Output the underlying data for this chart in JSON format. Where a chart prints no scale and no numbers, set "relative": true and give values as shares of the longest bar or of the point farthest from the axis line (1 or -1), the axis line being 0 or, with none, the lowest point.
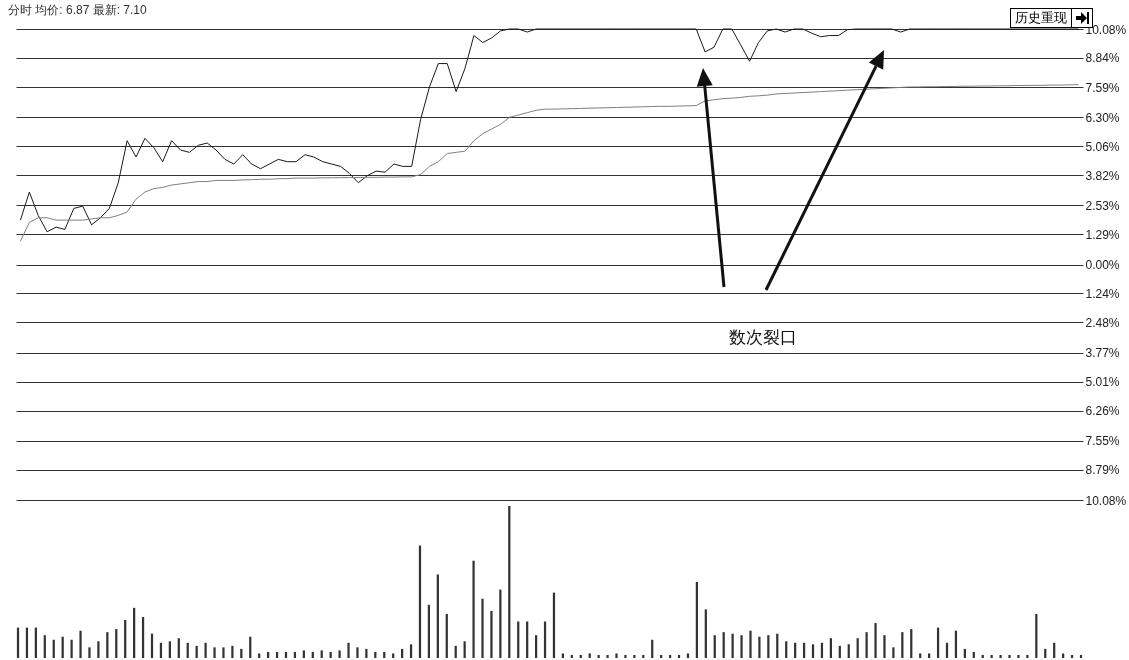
{
  "chart_data": [
    {
      "type": "line",
      "title": "分时 均价: 6.87 最新: 7.10",
      "categories": [
        null,
        null,
        null,
        null,
        null,
        null,
        null,
        null,
        null,
        null,
        null,
        null,
        null,
        null,
        null,
        null,
        null,
        null,
        null,
        null,
        null,
        null,
        null,
        null,
        null,
        null,
        null,
        null,
        null,
        null,
        null,
        null,
        null,
        null,
        null,
        null,
        null,
        null,
        null,
        null,
        null,
        null,
        null,
        null,
        null,
        null,
        null,
        null,
        null,
        null,
        null,
        null,
        null,
        null,
        null,
        null,
        null,
        null,
        null,
        null,
        null,
        null,
        null,
        null,
        null,
        null,
        null,
        null,
        null,
        null,
        null,
        null,
        null,
        null,
        null,
        null,
        null,
        null,
        null,
        null,
        null,
        null,
        null,
        null,
        null,
        null,
        null,
        null,
        null,
        null,
        null,
        null,
        null,
        null,
        null,
        null,
        null,
        null,
        null,
        null,
        null,
        null,
        null,
        null,
        null,
        null,
        null,
        null,
        null,
        null,
        null,
        null,
        null,
        null,
        null,
        null,
        null,
        null,
        null,
        null
      ],
      "series": [
        {
          "color": "#1a1a1a",
          "values": [
            1.9,
            3.1,
            2.1,
            1.4,
            1.6,
            1.5,
            2.4,
            2.5,
            1.7,
            2.0,
            2.4,
            3.5,
            5.3,
            4.6,
            5.4,
            5.0,
            4.4,
            5.3,
            4.9,
            4.8,
            5.1,
            5.2,
            4.9,
            4.5,
            4.3,
            4.7,
            4.3,
            4.1,
            4.3,
            4.5,
            4.4,
            4.4,
            4.7,
            4.6,
            4.4,
            4.3,
            4.2,
            3.9,
            3.5,
            3.8,
            4.0,
            3.95,
            4.3,
            4.2,
            4.2,
            6.2,
            7.6,
            8.6,
            8.6,
            7.4,
            8.4,
            9.8,
            9.5,
            9.7,
            10.0,
            10.08,
            10.08,
            9.95,
            10.08,
            10.08,
            10.08,
            10.08,
            10.08,
            10.08,
            10.08,
            10.08,
            10.08,
            10.08,
            10.08,
            10.08,
            10.08,
            10.08,
            10.08,
            10.08,
            10.08,
            10.08,
            10.08,
            9.1,
            9.3,
            10.08,
            10.08,
            9.4,
            8.7,
            9.5,
            10.0,
            10.08,
            9.95,
            10.08,
            10.08,
            9.9,
            9.75,
            9.8,
            9.8,
            10.05,
            10.08,
            10.08,
            10.08,
            10.08,
            10.08,
            9.95,
            10.08,
            10.08,
            10.08,
            10.08,
            10.08,
            10.08,
            10.08,
            10.08,
            10.08,
            10.08,
            10.08,
            10.08,
            10.08,
            10.08,
            10.08,
            10.08,
            10.08,
            10.08,
            10.08,
            10.08
          ]
        },
        {
          "color": "#7f7f7f",
          "values": [
            1.0,
            1.8,
            2.0,
            2.0,
            1.9,
            1.9,
            1.9,
            1.9,
            1.95,
            2.0,
            2.0,
            2.1,
            2.25,
            2.8,
            3.1,
            3.25,
            3.3,
            3.4,
            3.45,
            3.5,
            3.55,
            3.55,
            3.6,
            3.6,
            3.6,
            3.62,
            3.63,
            3.65,
            3.65,
            3.67,
            3.68,
            3.7,
            3.7,
            3.7,
            3.71,
            3.71,
            3.72,
            3.72,
            3.72,
            3.73,
            3.73,
            3.74,
            3.74,
            3.75,
            3.75,
            3.85,
            4.2,
            4.4,
            4.75,
            4.8,
            4.85,
            5.3,
            5.6,
            5.8,
            6.0,
            6.3,
            6.4,
            6.5,
            6.6,
            6.65,
            6.65,
            6.66,
            6.67,
            6.68,
            6.69,
            6.7,
            6.71,
            6.72,
            6.73,
            6.74,
            6.75,
            6.76,
            6.77,
            6.77,
            6.78,
            6.79,
            6.8,
            7.0,
            7.05,
            7.1,
            7.12,
            7.15,
            7.2,
            7.22,
            7.25,
            7.3,
            7.32,
            7.34,
            7.36,
            7.38,
            7.4,
            7.42,
            7.44,
            7.46,
            7.48,
            7.5,
            7.52,
            7.54,
            7.56,
            7.58,
            7.6,
            7.6,
            7.61,
            7.61,
            7.62,
            7.62,
            7.63,
            7.63,
            7.64,
            7.64,
            7.65,
            7.65,
            7.66,
            7.66,
            7.67,
            7.67,
            7.68,
            7.68,
            7.69,
            7.7
          ]
        }
      ],
      "ylim": [
        -10.08,
        10.08
      ],
      "yticks": [
        {
          "value": 10.08,
          "label": "10.08%"
        },
        {
          "value": 8.84,
          "label": "8.84%"
        },
        {
          "value": 7.59,
          "label": "7.59%"
        },
        {
          "value": 6.3,
          "label": "6.30%"
        },
        {
          "value": 5.06,
          "label": "5.06%"
        },
        {
          "value": 3.82,
          "label": "3.82%"
        },
        {
          "value": 2.53,
          "label": "2.53%"
        },
        {
          "value": 1.29,
          "label": "1.29%"
        },
        {
          "value": 0,
          "label": "0.00%"
        },
        {
          "value": -1.24,
          "label": "1.24%"
        },
        {
          "value": -2.48,
          "label": "2.48%"
        },
        {
          "value": -3.77,
          "label": "3.77%"
        },
        {
          "value": -5.01,
          "label": "5.01%"
        },
        {
          "value": -6.26,
          "label": "6.26%"
        },
        {
          "value": -7.55,
          "label": "7.55%"
        },
        {
          "value": -8.79,
          "label": "8.79%"
        },
        {
          "value": -10.08,
          "label": "10.08%"
        }
      ],
      "grid": "y",
      "tick_labels": "y",
      "annotations": [
        "数次裂口",
        "历史重现"
      ]
    },
    {
      "type": "bar",
      "relative": true,
      "color": "#333333",
      "tick_labels": false,
      "categories": [
        null,
        null,
        null,
        null,
        null,
        null,
        null,
        null,
        null,
        null,
        null,
        null,
        null,
        null,
        null,
        null,
        null,
        null,
        null,
        null,
        null,
        null,
        null,
        null,
        null,
        null,
        null,
        null,
        null,
        null,
        null,
        null,
        null,
        null,
        null,
        null,
        null,
        null,
        null,
        null,
        null,
        null,
        null,
        null,
        null,
        null,
        null,
        null,
        null,
        null,
        null,
        null,
        null,
        null,
        null,
        null,
        null,
        null,
        null,
        null,
        null,
        null,
        null,
        null,
        null,
        null,
        null,
        null,
        null,
        null,
        null,
        null,
        null,
        null,
        null,
        null,
        null,
        null,
        null,
        null,
        null,
        null,
        null,
        null,
        null,
        null,
        null,
        null,
        null,
        null,
        null,
        null,
        null,
        null,
        null,
        null,
        null,
        null,
        null,
        null,
        null,
        null,
        null,
        null,
        null,
        null,
        null,
        null,
        null,
        null,
        null,
        null,
        null,
        null,
        null,
        null,
        null,
        null,
        null,
        null
      ],
      "values": [
        0.2,
        0.2,
        0.2,
        0.15,
        0.12,
        0.14,
        0.12,
        0.18,
        0.07,
        0.11,
        0.17,
        0.19,
        0.25,
        0.33,
        0.27,
        0.16,
        0.1,
        0.11,
        0.13,
        0.1,
        0.08,
        0.1,
        0.07,
        0.07,
        0.08,
        0.06,
        0.14,
        0.03,
        0.04,
        0.04,
        0.04,
        0.04,
        0.05,
        0.04,
        0.05,
        0.04,
        0.05,
        0.1,
        0.07,
        0.06,
        0.04,
        0.04,
        0.03,
        0.06,
        0.09,
        0.74,
        0.35,
        0.55,
        0.29,
        0.08,
        0.11,
        0.64,
        0.39,
        0.31,
        0.45,
        1,
        0.24,
        0.24,
        0.15,
        0.24,
        0.43,
        0.03,
        0.02,
        0.02,
        0.03,
        0.02,
        0.02,
        0.03,
        0.02,
        0.02,
        0.02,
        0.12,
        0.02,
        0.02,
        0.02,
        0.03,
        0.5,
        0.32,
        0.15,
        0.17,
        0.16,
        0.15,
        0.18,
        0.14,
        0.15,
        0.16,
        0.11,
        0.1,
        0.1,
        0.09,
        0.1,
        0.13,
        0.08,
        0.09,
        0.13,
        0.17,
        0.23,
        0.15,
        0.07,
        0.17,
        0.19,
        0.03,
        0.03,
        0.2,
        0.1,
        0.18,
        0.06,
        0.04,
        0.02,
        0.02,
        0.02,
        0.02,
        0.02,
        0.02,
        0.29,
        0.06,
        0.1,
        0.03,
        0.02,
        0.02
      ]
    }
  ]
}
